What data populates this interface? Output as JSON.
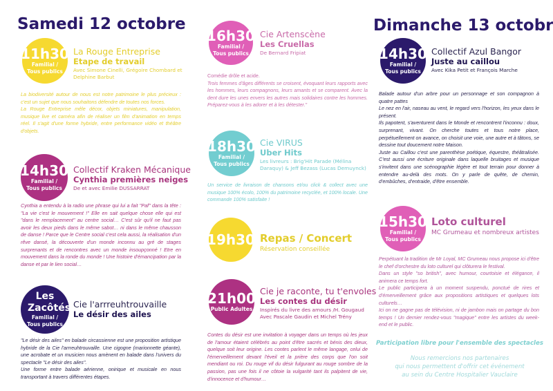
{
  "colors": {
    "navy": "#2b1a6b",
    "yellow": "#f6d930",
    "plum": "#ad3182",
    "pink": "#e05fb7",
    "teal": "#72cdd0"
  },
  "saturday": {
    "title": "Samedi 12 octobre",
    "events": [
      {
        "time": "11h30",
        "audience": "Familial / Tous publics",
        "company": "La Rouge Entreprise",
        "show": "Etape de travail",
        "credits": "Avec Simone Cinelli, Grégoire Chombard et Delphine Barbut",
        "desc": [
          "La biodiversité autour de nous est notre patrimoine le plus précieux : c'est un sujet que nous souhaitons défendre de toutes nos forces.",
          "La Rouge Entreprise mêle décor, objets miniatures, manipulation, musique live et caméra afin de réaliser un film d'animation en temps réel. Il s'agit d'une forme hybride, entre performance vidéo et théâtre d'objets."
        ]
      },
      {
        "time": "14h30",
        "audience": "Familial / Tous publics",
        "company": "Collectif Kraken Mécanique",
        "show": "Cynthia premières neiges",
        "credits": "De et avec Emilie DUSSARRAT",
        "desc": [
          "Cynthia a entendu à la radio une phrase qui lui a fait \"Paf\" dans la tête : \"La vie c'est le mouvement !\" Elle en sait quelque chose elle qui est \"dans le remplacement\" au centre social… C'est sûr qu'il ne faut pas avoir les deux pieds dans le même sabot… ni dans le même chausson de danse ! Parce que le Centre social c'est cela aussi, la réalisation d'un rêve dansé, la découverte d'un monde inconnu au gré de stages surprenants et de rencontres avec un monde insoupçonné ! Etre en mouvement dans la ronde du monde ! Une histoire d'émancipation par la danse et par le lien social…"
        ]
      },
      {
        "time": "Les Zacôtés",
        "audience": "Familial / Tous publics",
        "company": "Cie l'arrreuhtrouvaille",
        "show": "Le désir des ailes",
        "credits": "",
        "desc": [
          "\"Le désir des ailes\" en balade circassienne est une proposition artistique hybride de la Cie l'arrreuhtrouvaille. Une cigogne (marionnette géante), une acrobate et un musicien nous amènent en balade dans l'univers du spectacle \"Le désir des ailes\".",
          "Une forme entre balade aérienne, onirique et musicale en nous transportant à travers différentes étapes."
        ]
      },
      {
        "time": "16h30",
        "audience": "Familial / Tous publics",
        "company": "Cie Artenscène",
        "show": "Les Cruellas",
        "credits": "De Bernard Fripiat",
        "desc": [
          "Comédie drôle et acide.",
          "Trois femmes d'âges différents se croisent, évoquant leurs rapports avec les hommes, leurs compagnons, leurs amants et se comparent. Avec la dent dure les unes envers les autres mais solidaires contre les hommes. Préparez-vous à les adorer et à les détester.\""
        ]
      },
      {
        "time": "18h30",
        "audience": "Familial / Tous publics",
        "company": "Cie VIRUS",
        "show": "Uber Hits",
        "credits": "Les livreurs : Brig'Hit Parade (Mélina Daraquy) & Jeff Bezass (Lucas Demuynck)",
        "desc": [
          "Un service de livraison de chansons et/ou click & collect avec une musique 100% écolo, 100% du patrimoine recyclée, et 100% locale. Une commande 100% satisfaite !"
        ]
      },
      {
        "time": "19h30",
        "audience": "",
        "company": "",
        "show": "Repas / Concert",
        "credits": "Réservation conseillée",
        "desc": []
      },
      {
        "time": "21h00",
        "audience": "Public Adultes",
        "company": "Cie je raconte, tu t'envoles",
        "show": "Les contes du désir",
        "credits": "Inspirés du livre des amours /H. Gougaud Avec Pascale Gaudin et Michel Trény",
        "desc": [
          "Contes du désir est une invitation à voyager dans un temps où les jeux de l'amour étaient célébrés au point d'être sacrés et bénis des dieux, quelque soit leur origine. Les contes parlent le même langage, celui de l'émerveillement devant l'éveil et la prière des corps que l'on soit mendiant ou roi. Du rouge vif du désir fulgurant au rouge sombre de la passion, pas une fois il ne côtoie la vulgarité tant ils palpitent de vie, d'innocence et d'humour…"
        ]
      }
    ]
  },
  "sunday": {
    "title": "Dimanche 13 octobre",
    "events": [
      {
        "time": "14h30",
        "audience": "Familial / Tous publics",
        "company": "Collectif Azul Bangor",
        "show": "Juste au caillou",
        "credits": "Avec Kika Petit et François Marche",
        "desc": [
          "Balade autour d'un arbre pour un personnage et son compagnon à quatre pattes",
          "Le nez en l'air, naseau au vent, le regard vers l'horizon, les yeux dans le présent.",
          "Ils papotent, s'aventurent dans le Monde et rencontrent l'inconnu : doux, surprenant, vivant. On cherche toutes et tous notre place, perpétuellement on avance, on choisit une voie, une autre et à tâtons, se dessine tout doucement notre Maison.",
          "Juste au Caillou c'est une parenthèse poétique, équestre, théâtralisée. C'est aussi une écriture originale dans laquelle bruitages et musique s'invitent dans une scénographie légère et tout terrain pour donner à entendre au-delà des mots. On y parle de quête, de chemin, d'embûches, d'entraide, d'être ensemble."
        ]
      },
      {
        "time": "15h30",
        "audience": "Familial / Tous publics",
        "company": "",
        "show": "Loto culturel",
        "credits": "MC Grumeau et nombreux artistes",
        "desc": [
          "Perpétuant la tradition de Mr Loyal, MC Grumeau nous propose ici d'être le chef d'orchestre du loto culturel qui clôturera le festival.",
          "Dans un style \"so british\", avec humour, courtoisie et élégance, il animera ce temps fort.",
          "Le public participera à un moment suspendu, ponctué de rires et d'émerveillement grâce aux propositions artistiques et quelques lots culturels…",
          "Ici on ne gagne pas de télévision, ni de jambon mais on partage du bon temps ! Un dernier rendez-vous \"magique\" entre les artistes du week-end et le public."
        ]
      }
    ]
  },
  "footer": {
    "participation": "Participation libre pour l'ensemble des spectacles",
    "thanks": [
      "Nous remercions nos partenaires",
      "qui nous permettent d'offrir cet événement",
      "au sein du Centre Hospitalier Vauclaire"
    ]
  }
}
